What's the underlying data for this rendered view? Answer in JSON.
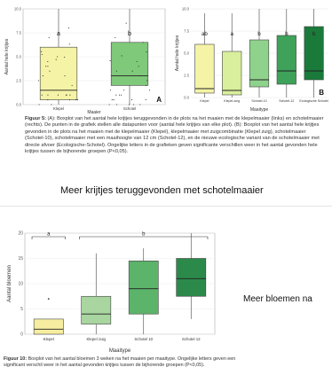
{
  "slide_top": {
    "heading": "Meer krijtjes teruggevonden met schotelmaaier",
    "caption_lead": "Figuur 5:",
    "caption_lines": [
      "(A): Boxplot van het aantal hele krijtjes teruggevonden in de plots na het maaien met de",
      "klepelmaaier (links) en schotelmaaier (rechts). De punten in de grafiek stellen alle datapunten voor",
      "(aantal hele krijtjes van elke plot). (B): Boxplot van het aantal hele krijtjes gevonden in de plots na het",
      "maaien met de klepelmaaier (Klepel), klepelmaaier met zuigcombinatie (Klepel zuig), schotelmaaier",
      "(Schotel-10), schotelmaaier met een maaihoogte van 12 cm (Schotel-12), en de nieuwe ecologische",
      "variant van de schotelmaaier met directe afvoer (Ecologische-Schotel). Ongelijke letters in de grafieken",
      "geven significante verschillen weer in het aantal gevonden hele krijtjes tussen de bijhorende groepen",
      "(P<0,05)."
    ]
  },
  "chart_data": [
    {
      "type": "box",
      "panel_label": "A",
      "ylabel": "Aantal hele krijtjes",
      "xlabel": "Maaier",
      "ylim": [
        0,
        10
      ],
      "yticks": [
        0,
        2.5,
        5,
        7.5,
        10
      ],
      "ytick_labels": [
        "0.0",
        "2.5",
        "5.0",
        "7.5",
        "10.0"
      ],
      "categories": [
        "Klepel",
        "Schotel"
      ],
      "boxes": [
        {
          "min": 0,
          "q1": 0.5,
          "median": 1.5,
          "q3": 6,
          "max": 10,
          "color": "#f4f3a6",
          "letter": "a"
        },
        {
          "min": 0,
          "q1": 2,
          "median": 3,
          "q3": 6.5,
          "max": 10,
          "color": "#7fc97a",
          "letter": "b"
        }
      ]
    },
    {
      "type": "box",
      "panel_label": "B",
      "ylabel": "Aantal hele krijtjes",
      "xlabel": "Maaitype",
      "ylim": [
        0,
        10
      ],
      "yticks": [
        0,
        2.5,
        5,
        7.5,
        10
      ],
      "ytick_labels": [
        "0.0",
        "2.5",
        "5.0",
        "7.5",
        "10.0"
      ],
      "categories": [
        "Klepel",
        "Klepel-zuig",
        "Schotel-10",
        "Schotel-12",
        "Ecologische Schotel"
      ],
      "boxes": [
        {
          "min": 0,
          "q1": 0.5,
          "median": 1,
          "q3": 6,
          "max": 9.5,
          "color": "#f4f3a6",
          "letter": "ab"
        },
        {
          "min": 0,
          "q1": 0.3,
          "median": 0.8,
          "q3": 5.2,
          "max": 9.5,
          "color": "#d9ef9d",
          "letter": "a"
        },
        {
          "min": 0,
          "q1": 1.2,
          "median": 2,
          "q3": 6.5,
          "max": 10,
          "color": "#8fd28c",
          "letter": "b"
        },
        {
          "min": 0,
          "q1": 1.5,
          "median": 3,
          "q3": 7,
          "max": 10,
          "color": "#3ea25a",
          "letter": "b"
        },
        {
          "min": 0,
          "q1": 2,
          "median": 3,
          "q3": 8,
          "max": 10,
          "color": "#1a7a3a",
          "letter": "b"
        }
      ]
    },
    {
      "type": "box",
      "ylabel": "Aantal bloemen",
      "xlabel": "Maaitype",
      "ylim": [
        0,
        20
      ],
      "yticks": [
        0,
        5,
        10,
        15,
        20
      ],
      "ytick_labels": [
        "0",
        "5",
        "10",
        "15",
        "20"
      ],
      "categories": [
        "Klepel",
        "Klepel zuig",
        "Schotel 10",
        "Schotel 12"
      ],
      "boxes": [
        {
          "min": 0,
          "q1": 0,
          "median": 1,
          "q3": 3,
          "max": 3,
          "outliers": [
            7
          ],
          "color": "#f6eda0"
        },
        {
          "min": 0,
          "q1": 2,
          "median": 4,
          "q3": 7.5,
          "max": 16,
          "color": "#a8d5a0"
        },
        {
          "min": 0,
          "q1": 4,
          "median": 9,
          "q3": 14.5,
          "max": 17,
          "color": "#5cb36a"
        },
        {
          "min": 3,
          "q1": 7.5,
          "median": 11,
          "q3": 15,
          "max": 20,
          "color": "#2b8a4a"
        }
      ],
      "brackets": [
        {
          "from": 0,
          "to": 0,
          "letter": "a"
        },
        {
          "from": 1,
          "to": 3,
          "letter": "b"
        }
      ]
    }
  ],
  "slide_bottom": {
    "side_text": "Meer bloemen na",
    "caption_lead": "Figuur 10:",
    "caption_lines": [
      "Boxplot van het aantal bloemen 3 weken na het maaien per maaitype. Ongelijke letters geven",
      "een significant verschil weer in het aantal gevonden krijtjes tussen de bijhorende groepen (P<0,05)."
    ]
  }
}
